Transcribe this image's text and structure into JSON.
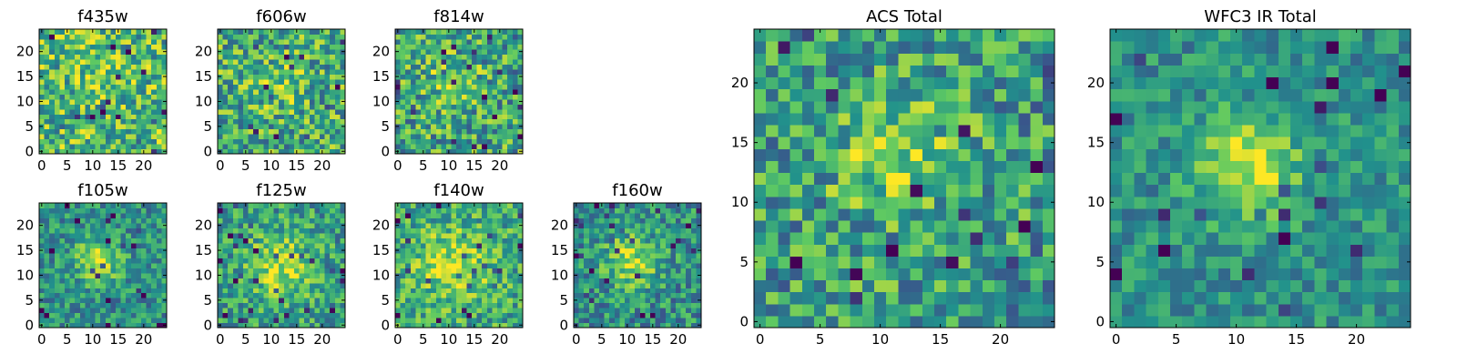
{
  "chart_data": [
    {
      "id": "f435w",
      "type": "heatmap",
      "title": "f435w",
      "grid": 25,
      "seed": 11,
      "blob": {
        "cx": 12,
        "cy": 15,
        "sigma": 3.5,
        "amp": 0.12
      },
      "noise": 0.32,
      "base": 0.68,
      "xticks": [
        0,
        5,
        10,
        15,
        20
      ],
      "yticks": [
        0,
        5,
        10,
        15,
        20
      ],
      "xtick_labels": [
        "0",
        "5",
        "10",
        "15",
        "20"
      ],
      "ytick_labels": [
        "0",
        "5",
        "10",
        "15",
        "20"
      ],
      "xlim": [
        -0.5,
        24.5
      ],
      "ylim": [
        -0.5,
        24.5
      ]
    },
    {
      "id": "f606w",
      "type": "heatmap",
      "title": "f606w",
      "grid": 25,
      "seed": 23,
      "blob": {
        "cx": 12,
        "cy": 14,
        "sigma": 3.5,
        "amp": 0.15
      },
      "noise": 0.32,
      "base": 0.62,
      "xticks": [
        0,
        5,
        10,
        15,
        20
      ],
      "yticks": [
        0,
        5,
        10,
        15,
        20
      ],
      "xtick_labels": [
        "0",
        "5",
        "10",
        "15",
        "20"
      ],
      "ytick_labels": [
        "0",
        "5",
        "10",
        "15",
        "20"
      ],
      "xlim": [
        -0.5,
        24.5
      ],
      "ylim": [
        -0.5,
        24.5
      ]
    },
    {
      "id": "f814w",
      "type": "heatmap",
      "title": "f814w",
      "grid": 25,
      "seed": 37,
      "blob": {
        "cx": 11,
        "cy": 14,
        "sigma": 3.0,
        "amp": 0.25
      },
      "noise": 0.32,
      "base": 0.6,
      "xticks": [
        0,
        5,
        10,
        15,
        20
      ],
      "yticks": [
        0,
        5,
        10,
        15,
        20
      ],
      "xtick_labels": [
        "0",
        "5",
        "10",
        "15",
        "20"
      ],
      "ytick_labels": [
        "0",
        "5",
        "10",
        "15",
        "20"
      ],
      "xlim": [
        -0.5,
        24.5
      ],
      "ylim": [
        -0.5,
        24.5
      ]
    },
    {
      "id": "f105w",
      "type": "heatmap",
      "title": "f105w",
      "grid": 25,
      "seed": 41,
      "blob": {
        "cx": 11,
        "cy": 13,
        "sigma": 3.0,
        "amp": 0.4
      },
      "noise": 0.22,
      "base": 0.5,
      "xticks": [
        0,
        5,
        10,
        15,
        20
      ],
      "yticks": [
        0,
        5,
        10,
        15,
        20
      ],
      "xtick_labels": [
        "0",
        "5",
        "10",
        "15",
        "20"
      ],
      "ytick_labels": [
        "0",
        "5",
        "10",
        "15",
        "20"
      ],
      "xlim": [
        -0.5,
        24.5
      ],
      "ylim": [
        -0.5,
        24.5
      ]
    },
    {
      "id": "f125w",
      "type": "heatmap",
      "title": "f125w",
      "grid": 25,
      "seed": 53,
      "blob": {
        "cx": 12,
        "cy": 12,
        "sigma": 4.5,
        "amp": 0.35
      },
      "noise": 0.25,
      "base": 0.55,
      "xticks": [
        0,
        5,
        10,
        15,
        20
      ],
      "yticks": [
        0,
        5,
        10,
        15,
        20
      ],
      "xtick_labels": [
        "0",
        "5",
        "10",
        "15",
        "20"
      ],
      "ytick_labels": [
        "0",
        "5",
        "10",
        "15",
        "20"
      ],
      "xlim": [
        -0.5,
        24.5
      ],
      "ylim": [
        -0.5,
        24.5
      ]
    },
    {
      "id": "f140w",
      "type": "heatmap",
      "title": "f140w",
      "grid": 25,
      "seed": 67,
      "blob": {
        "cx": 11,
        "cy": 12,
        "sigma": 5.0,
        "amp": 0.3
      },
      "noise": 0.25,
      "base": 0.6,
      "xticks": [
        0,
        5,
        10,
        15,
        20
      ],
      "yticks": [
        0,
        5,
        10,
        15,
        20
      ],
      "xtick_labels": [
        "0",
        "5",
        "10",
        "15",
        "20"
      ],
      "ytick_labels": [
        "0",
        "5",
        "10",
        "15",
        "20"
      ],
      "xlim": [
        -0.5,
        24.5
      ],
      "ylim": [
        -0.5,
        24.5
      ]
    },
    {
      "id": "f160w",
      "type": "heatmap",
      "title": "f160w",
      "grid": 25,
      "seed": 79,
      "blob": {
        "cx": 11,
        "cy": 13,
        "sigma": 3.5,
        "amp": 0.4
      },
      "noise": 0.25,
      "base": 0.5,
      "xticks": [
        0,
        5,
        10,
        15,
        20
      ],
      "yticks": [
        0,
        5,
        10,
        15,
        20
      ],
      "xtick_labels": [
        "0",
        "5",
        "10",
        "15",
        "20"
      ],
      "ytick_labels": [
        "0",
        "5",
        "10",
        "15",
        "20"
      ],
      "xlim": [
        -0.5,
        24.5
      ],
      "ylim": [
        -0.5,
        24.5
      ]
    },
    {
      "id": "acs_total",
      "type": "heatmap",
      "title": "ACS Total",
      "grid": 25,
      "seed": 97,
      "blob": {
        "cx": 11,
        "cy": 14,
        "sigma": 3.5,
        "amp": 0.3
      },
      "noise": 0.3,
      "base": 0.55,
      "xticks": [
        0,
        5,
        10,
        15,
        20
      ],
      "yticks": [
        0,
        5,
        10,
        15,
        20
      ],
      "xtick_labels": [
        "0",
        "5",
        "10",
        "15",
        "20"
      ],
      "ytick_labels": [
        "0",
        "5",
        "10",
        "15",
        "20"
      ],
      "xlim": [
        -0.5,
        24.5
      ],
      "ylim": [
        -0.5,
        24.5
      ]
    },
    {
      "id": "wfc3_ir_total",
      "type": "heatmap",
      "title": "WFC3 IR Total",
      "grid": 25,
      "seed": 113,
      "blob": {
        "cx": 11,
        "cy": 13,
        "sigma": 3.0,
        "amp": 0.45
      },
      "noise": 0.18,
      "base": 0.5,
      "xticks": [
        0,
        5,
        10,
        15,
        20
      ],
      "yticks": [
        0,
        5,
        10,
        15,
        20
      ],
      "xtick_labels": [
        "0",
        "5",
        "10",
        "15",
        "20"
      ],
      "ytick_labels": [
        "0",
        "5",
        "10",
        "15",
        "20"
      ],
      "xlim": [
        -0.5,
        24.5
      ],
      "ylim": [
        -0.5,
        24.5
      ]
    }
  ],
  "colormap": {
    "name": "viridis",
    "stops": [
      "#440154",
      "#3b528b",
      "#21918c",
      "#5ec962",
      "#fde725"
    ]
  }
}
